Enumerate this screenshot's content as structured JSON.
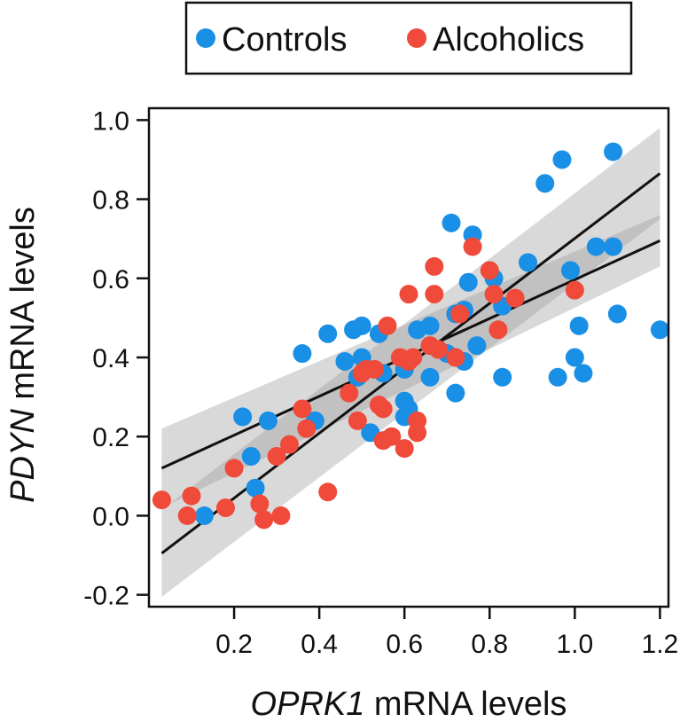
{
  "chart_data": {
    "type": "scatter",
    "xlabel": {
      "italic": "OPRK1",
      "rest": " mRNA levels"
    },
    "ylabel": {
      "italic": "PDYN",
      "rest": " mRNA levels"
    },
    "xlim": [
      0.0,
      1.22
    ],
    "ylim": [
      -0.23,
      1.03
    ],
    "xticks": [
      0.2,
      0.4,
      0.6,
      0.8,
      1.0,
      1.2
    ],
    "xtick_labels": [
      "0.2",
      "0.4",
      "0.6",
      "0.8",
      "1.0",
      "1.2"
    ],
    "yticks": [
      -0.2,
      0.0,
      0.2,
      0.4,
      0.6,
      0.8,
      1.0
    ],
    "ytick_labels": [
      "-0.2",
      "0.0",
      "0.2",
      "0.4",
      "0.6",
      "0.8",
      "1.0"
    ],
    "grid": false,
    "legend_position": "top-center",
    "series": [
      {
        "name": "Controls",
        "color": "#1a8fe6",
        "points": [
          [
            0.13,
            0.0
          ],
          [
            0.22,
            0.25
          ],
          [
            0.24,
            0.15
          ],
          [
            0.25,
            0.07
          ],
          [
            0.28,
            0.24
          ],
          [
            0.36,
            0.41
          ],
          [
            0.39,
            0.24
          ],
          [
            0.42,
            0.46
          ],
          [
            0.46,
            0.39
          ],
          [
            0.48,
            0.47
          ],
          [
            0.49,
            0.35
          ],
          [
            0.5,
            0.4
          ],
          [
            0.5,
            0.48
          ],
          [
            0.52,
            0.21
          ],
          [
            0.54,
            0.46
          ],
          [
            0.55,
            0.36
          ],
          [
            0.6,
            0.37
          ],
          [
            0.6,
            0.29
          ],
          [
            0.6,
            0.25
          ],
          [
            0.61,
            0.27
          ],
          [
            0.63,
            0.47
          ],
          [
            0.66,
            0.35
          ],
          [
            0.66,
            0.48
          ],
          [
            0.7,
            0.41
          ],
          [
            0.71,
            0.74
          ],
          [
            0.72,
            0.31
          ],
          [
            0.72,
            0.51
          ],
          [
            0.74,
            0.39
          ],
          [
            0.74,
            0.52
          ],
          [
            0.75,
            0.59
          ],
          [
            0.76,
            0.71
          ],
          [
            0.77,
            0.43
          ],
          [
            0.81,
            0.6
          ],
          [
            0.83,
            0.35
          ],
          [
            0.83,
            0.53
          ],
          [
            0.89,
            0.64
          ],
          [
            0.93,
            0.84
          ],
          [
            0.96,
            0.35
          ],
          [
            0.97,
            0.9
          ],
          [
            0.99,
            0.62
          ],
          [
            1.0,
            0.4
          ],
          [
            1.01,
            0.48
          ],
          [
            1.02,
            0.36
          ],
          [
            1.05,
            0.68
          ],
          [
            1.09,
            0.92
          ],
          [
            1.09,
            0.68
          ],
          [
            1.1,
            0.51
          ],
          [
            1.2,
            0.47
          ]
        ]
      },
      {
        "name": "Alcoholics",
        "color": "#ef4a3a",
        "points": [
          [
            0.03,
            0.04
          ],
          [
            0.09,
            0.0
          ],
          [
            0.1,
            0.05
          ],
          [
            0.18,
            0.02
          ],
          [
            0.2,
            0.12
          ],
          [
            0.26,
            0.03
          ],
          [
            0.27,
            -0.01
          ],
          [
            0.3,
            0.15
          ],
          [
            0.31,
            0.0
          ],
          [
            0.33,
            0.18
          ],
          [
            0.36,
            0.27
          ],
          [
            0.37,
            0.22
          ],
          [
            0.42,
            0.06
          ],
          [
            0.47,
            0.31
          ],
          [
            0.49,
            0.24
          ],
          [
            0.5,
            0.36
          ],
          [
            0.51,
            0.37
          ],
          [
            0.53,
            0.37
          ],
          [
            0.54,
            0.28
          ],
          [
            0.55,
            0.27
          ],
          [
            0.55,
            0.19
          ],
          [
            0.56,
            0.48
          ],
          [
            0.57,
            0.2
          ],
          [
            0.59,
            0.4
          ],
          [
            0.6,
            0.17
          ],
          [
            0.61,
            0.39
          ],
          [
            0.61,
            0.56
          ],
          [
            0.62,
            0.4
          ],
          [
            0.63,
            0.24
          ],
          [
            0.63,
            0.21
          ],
          [
            0.66,
            0.43
          ],
          [
            0.67,
            0.63
          ],
          [
            0.67,
            0.56
          ],
          [
            0.68,
            0.42
          ],
          [
            0.72,
            0.4
          ],
          [
            0.73,
            0.51
          ],
          [
            0.76,
            0.68
          ],
          [
            0.8,
            0.62
          ],
          [
            0.81,
            0.56
          ],
          [
            0.82,
            0.47
          ],
          [
            0.86,
            0.55
          ],
          [
            1.0,
            0.57
          ]
        ]
      }
    ],
    "fit_lines": [
      {
        "name": "steep-fit",
        "x": [
          0.03,
          1.2
        ],
        "y": [
          -0.095,
          0.865
        ],
        "ci_low": [
          -0.205,
          0.75
        ],
        "ci_high": [
          0.015,
          0.98
        ]
      },
      {
        "name": "shallow-fit",
        "x": [
          0.03,
          1.2
        ],
        "y": [
          0.12,
          0.695
        ],
        "ci_low": [
          0.02,
          0.63
        ],
        "ci_high": [
          0.22,
          0.76
        ]
      }
    ]
  }
}
